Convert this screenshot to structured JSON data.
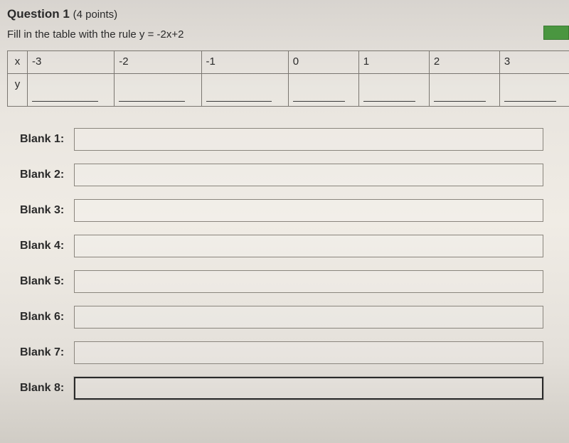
{
  "question": {
    "number_label": "Question 1",
    "points_label": "(4 points)",
    "instruction": "Fill in the table with the rule y = -2x+2"
  },
  "table": {
    "row_x_header": "x",
    "row_y_header": "y",
    "x_values": [
      "-3",
      "-2",
      "-1",
      "0",
      "1",
      "2",
      "3"
    ],
    "y_values": [
      "",
      "",
      "",
      "",
      "",
      "",
      ""
    ]
  },
  "blanks": {
    "labels": [
      "Blank 1:",
      "Blank 2:",
      "Blank 3:",
      "Blank 4:",
      "Blank 5:",
      "Blank 6:",
      "Blank 7:",
      "Blank 8:"
    ],
    "values": [
      "",
      "",
      "",
      "",
      "",
      "",
      "",
      ""
    ],
    "focused_index": 7
  },
  "colors": {
    "border": "#7a7670",
    "text": "#2a2a2a",
    "input_border": "#8a857d",
    "focus_border": "#2a2a2a",
    "green_button": "#4a9640"
  }
}
